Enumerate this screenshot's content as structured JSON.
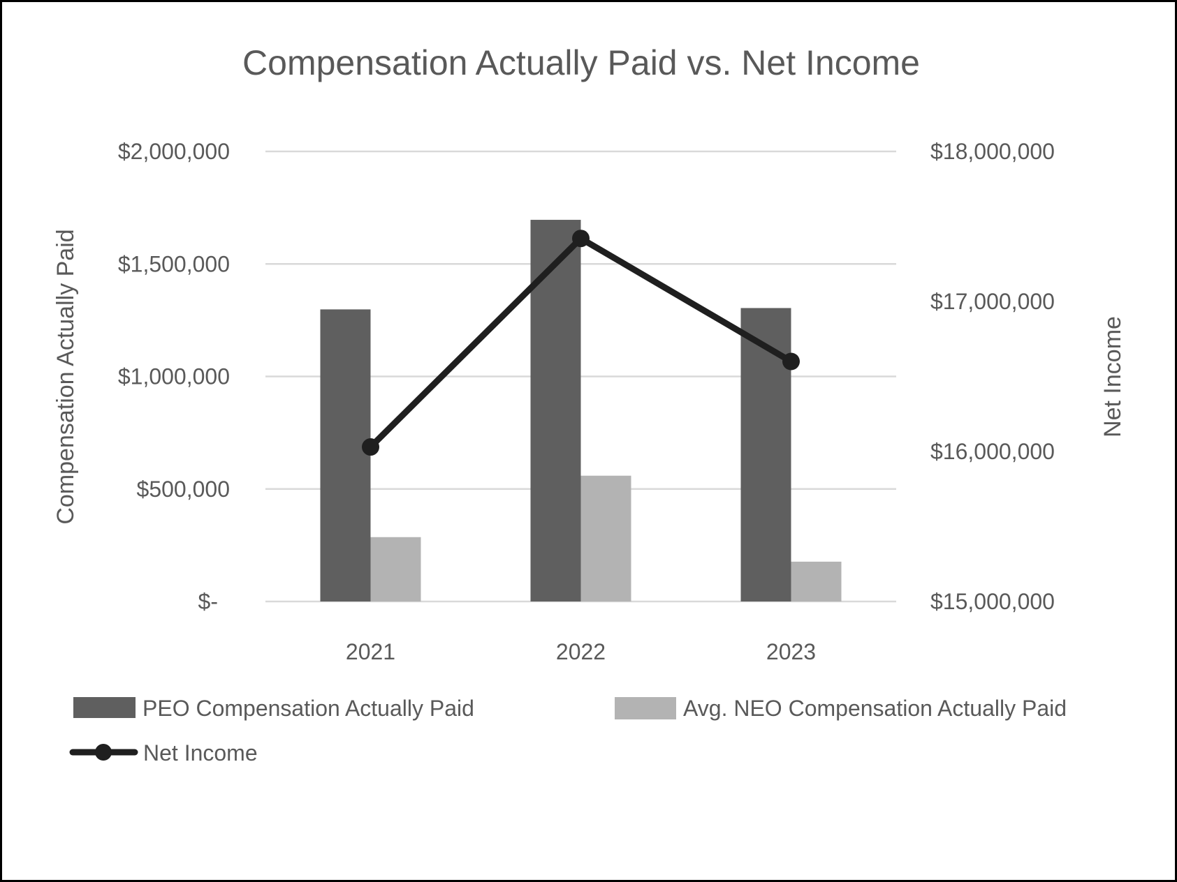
{
  "chart_data": {
    "type": "bar",
    "combo": "bar+line (dual axis)",
    "title": "Compensation Actually Paid vs. Net Income",
    "categories": [
      "2021",
      "2022",
      "2023"
    ],
    "series": [
      {
        "name": "PEO Compensation Actually Paid",
        "type": "bar",
        "axis": "left",
        "color": "#5f5f5f",
        "values": [
          1298000,
          1696000,
          1304000
        ]
      },
      {
        "name": "Avg. NEO Compensation Actually Paid",
        "type": "bar",
        "axis": "left",
        "color": "#b3b3b3",
        "values": [
          286000,
          559000,
          177000
        ]
      },
      {
        "name": "Net Income",
        "type": "line",
        "axis": "right",
        "color": "#1f1f1f",
        "marker": "circle",
        "values": [
          16030000,
          17420000,
          16600000
        ]
      }
    ],
    "ylabel": "Compensation Actually Paid",
    "ylabel_right": "Net Income",
    "xlabel": "",
    "ylim": [
      0,
      2000000
    ],
    "ylim_right": [
      15000000,
      18000000
    ],
    "yticks": [
      {
        "value": 0,
        "label": "$-"
      },
      {
        "value": 500000,
        "label": "$500,000"
      },
      {
        "value": 1000000,
        "label": "$1,000,000"
      },
      {
        "value": 1500000,
        "label": "$1,500,000"
      },
      {
        "value": 2000000,
        "label": "$2,000,000"
      }
    ],
    "yticks_right": [
      {
        "value": 15000000,
        "label": "$15,000,000"
      },
      {
        "value": 16000000,
        "label": "$16,000,000"
      },
      {
        "value": 17000000,
        "label": "$17,000,000"
      },
      {
        "value": 18000000,
        "label": "$18,000,000"
      }
    ],
    "grid": true,
    "gridline_color": "#d9d9d9",
    "text_color": "#595959",
    "legend_position": "bottom"
  },
  "legend": {
    "items": [
      {
        "label": "PEO Compensation Actually Paid",
        "kind": "bar",
        "color": "#5f5f5f"
      },
      {
        "label": "Avg. NEO Compensation Actually Paid",
        "kind": "bar",
        "color": "#b3b3b3"
      },
      {
        "label": "Net Income",
        "kind": "line-marker",
        "color": "#1f1f1f"
      }
    ]
  }
}
